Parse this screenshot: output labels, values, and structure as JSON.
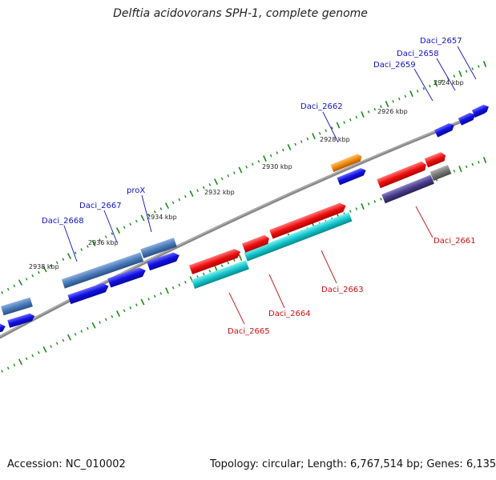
{
  "title": "Delftia acidovorans SPH-1, complete genome",
  "footer": {
    "accession_label": "Accession:",
    "accession_value": "NC_010002",
    "topology_label": "Topology:",
    "topology_value": "circular;",
    "length_label": "Length:",
    "length_value": "6,767,514 bp;",
    "genes_label": "Genes:",
    "genes_value": "6,135"
  },
  "ruler": {
    "ticks": [
      {
        "label": "2924 kbp"
      },
      {
        "label": "2926 kbp"
      },
      {
        "label": "2928 kbp"
      },
      {
        "label": "2930 kbp"
      },
      {
        "label": "2932 kbp"
      },
      {
        "label": "2934 kbp"
      },
      {
        "label": "2936 kbp"
      },
      {
        "label": "2938 kbp"
      }
    ]
  },
  "genes": {
    "forward": [
      {
        "name": "Daci_2657"
      },
      {
        "name": "Daci_2658"
      },
      {
        "name": "Daci_2659"
      },
      {
        "name": "Daci_2662"
      },
      {
        "name": "proX"
      },
      {
        "name": "Daci_2667"
      },
      {
        "name": "Daci_2668"
      }
    ],
    "reverse": [
      {
        "name": "Daci_2661"
      },
      {
        "name": "Daci_2663"
      },
      {
        "name": "Daci_2664"
      },
      {
        "name": "Daci_2665"
      }
    ]
  },
  "colors": {
    "cds_forward": "#1010e0",
    "cds_forward_alt": "#4a7ab8",
    "cds_reverse": "#ee1111",
    "cds_reverse_alt": "#12c6cc",
    "orange_feature": "#f08a10",
    "purple_feature": "#4a3c88",
    "gray_feature": "#777777",
    "backbone": "#777777",
    "tick_green": "#1a8a1a"
  }
}
